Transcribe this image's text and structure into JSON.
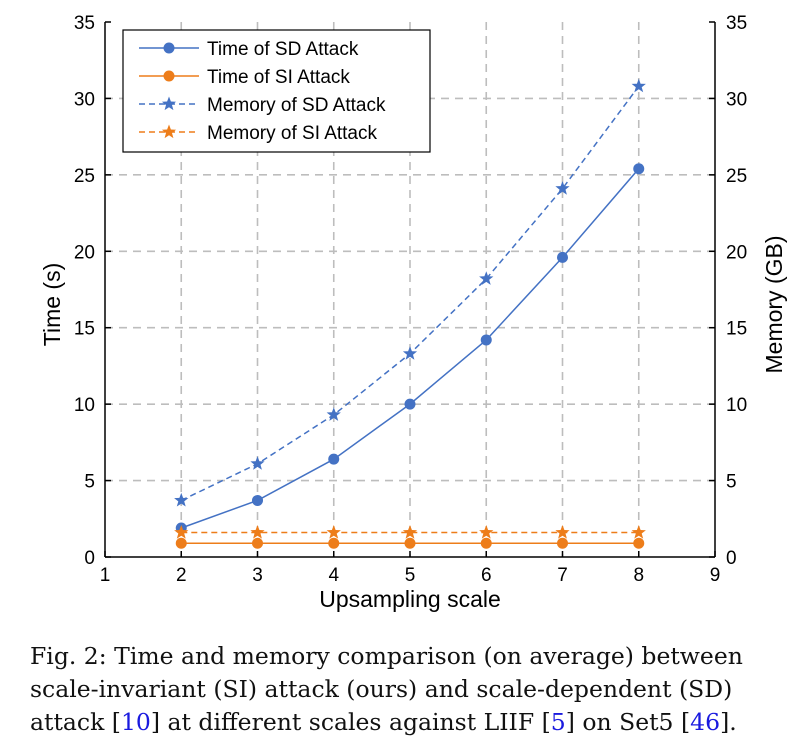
{
  "chart_data": {
    "type": "line",
    "xlabel": "Upsampling scale",
    "ylabel": "Time (s)",
    "y2label": "Memory (GB)",
    "xlim": [
      1,
      9
    ],
    "ylim": [
      0,
      35
    ],
    "y2lim": [
      0,
      35
    ],
    "xticks": [
      "1",
      "2",
      "3",
      "4",
      "5",
      "6",
      "7",
      "8",
      "9"
    ],
    "yticks": [
      "0",
      "5",
      "10",
      "15",
      "20",
      "25",
      "30",
      "35"
    ],
    "grid": true,
    "legend_position": "top-left",
    "x": [
      2,
      3,
      4,
      5,
      6,
      7,
      8
    ],
    "series": [
      {
        "name": "Time of SD Attack",
        "axis": "left",
        "style": "solid",
        "marker": "circle",
        "color": "#4472c4",
        "values": [
          1.9,
          3.7,
          6.4,
          10.0,
          14.2,
          19.6,
          25.4
        ]
      },
      {
        "name": "Time of SI Attack",
        "axis": "left",
        "style": "solid",
        "marker": "circle",
        "color": "#ed7d1a",
        "values": [
          0.9,
          0.9,
          0.9,
          0.9,
          0.9,
          0.9,
          0.9
        ]
      },
      {
        "name": "Memory of SD Attack",
        "axis": "right",
        "style": "dashed",
        "marker": "star",
        "color": "#4472c4",
        "values": [
          3.7,
          6.1,
          9.3,
          13.3,
          18.2,
          24.1,
          30.8
        ]
      },
      {
        "name": "Memory of SI Attack",
        "axis": "right",
        "style": "dashed",
        "marker": "star",
        "color": "#ed7d1a",
        "values": [
          1.6,
          1.6,
          1.6,
          1.6,
          1.6,
          1.6,
          1.6
        ]
      }
    ]
  },
  "caption": {
    "part1": "Fig. 2: Time and memory comparison (on average) between scale-invariant (SI) attack (ours) and scale-dependent (SD) attack [",
    "ref1": "10",
    "part2": "] at different scales against LIIF [",
    "ref2": "5",
    "part3": "] on Set5 [",
    "ref3": "46",
    "part4": "]."
  }
}
